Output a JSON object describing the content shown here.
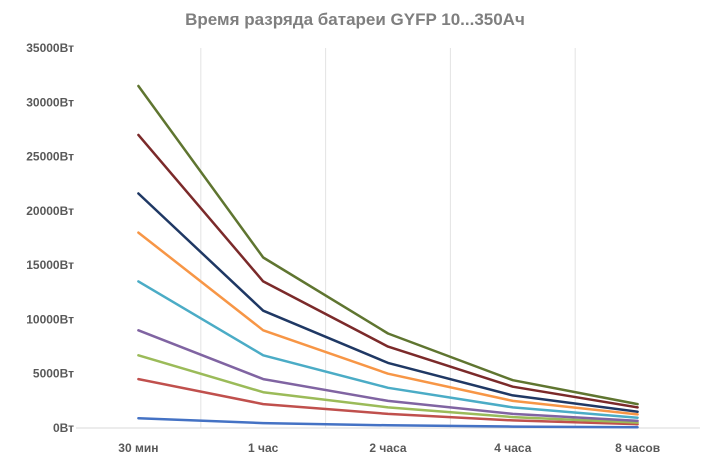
{
  "chart_data": {
    "type": "line",
    "title": "Время разряда батареи GYFP 10...350Ач",
    "xlabel": "",
    "ylabel": "",
    "categories": [
      "30 мин",
      "1 час",
      "2 часа",
      "4 часа",
      "8 часов"
    ],
    "ylim": [
      0,
      35000
    ],
    "y_ticks": [
      0,
      5000,
      10000,
      15000,
      20000,
      25000,
      30000,
      35000
    ],
    "y_tick_labels": [
      "0Вт",
      "5000Вт",
      "10000Вт",
      "15000Вт",
      "20000Вт",
      "25000Вт",
      "30000Вт",
      "35000Вт"
    ],
    "grid": "vertical",
    "legend": "none",
    "series": [
      {
        "color": "#4472c4",
        "values": [
          900,
          450,
          250,
          130,
          70
        ]
      },
      {
        "color": "#c0504d",
        "values": [
          4500,
          2200,
          1300,
          700,
          350
        ]
      },
      {
        "color": "#9bbb59",
        "values": [
          6700,
          3300,
          1900,
          1000,
          500
        ]
      },
      {
        "color": "#8064a2",
        "values": [
          9000,
          4500,
          2500,
          1300,
          650
        ]
      },
      {
        "color": "#4bacc6",
        "values": [
          13500,
          6700,
          3700,
          1900,
          950
        ]
      },
      {
        "color": "#f79646",
        "values": [
          18000,
          9000,
          5000,
          2500,
          1250
        ]
      },
      {
        "color": "#1f3864",
        "values": [
          21600,
          10800,
          6000,
          3000,
          1500
        ]
      },
      {
        "color": "#7b2a2a",
        "values": [
          27000,
          13500,
          7500,
          3800,
          1900
        ]
      },
      {
        "color": "#5f7530",
        "values": [
          31500,
          15700,
          8700,
          4400,
          2200
        ]
      }
    ]
  }
}
